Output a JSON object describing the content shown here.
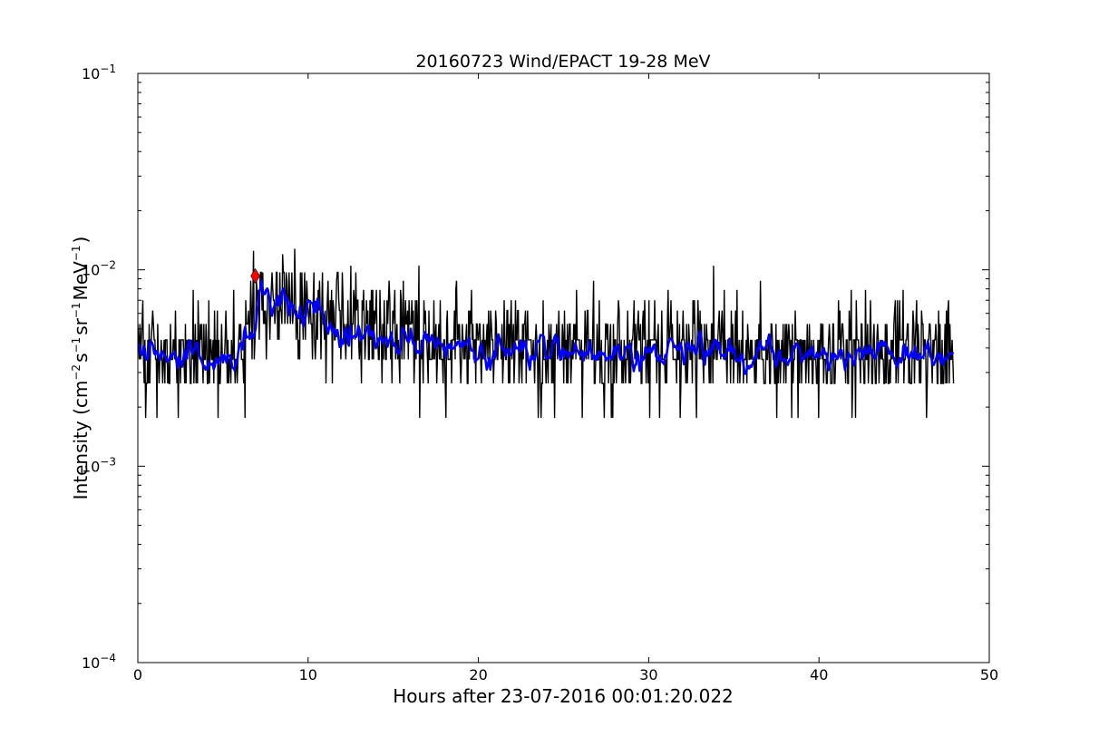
{
  "chart_data": {
    "type": "line",
    "title": "20160723 Wind/EPACT 19-28 MeV",
    "xlabel": "Hours after 23-07-2016 00:01:20.022",
    "ylabel": {
      "base": "Intensity (cm",
      "e1": "−2",
      "u1": "s",
      "e2": "−1",
      "u2": "sr",
      "e3": "−1",
      "u3": "MeV",
      "e4": "−1",
      "close": ")"
    },
    "xlim": [
      0,
      50
    ],
    "ylim": [
      0.0001,
      0.1
    ],
    "yscale": "log",
    "grid": false,
    "xticks": [
      "0",
      "10",
      "20",
      "30",
      "40",
      "50"
    ],
    "yticks": [
      {
        "base": "10",
        "exp": "−4",
        "value": 0.0001
      },
      {
        "base": "10",
        "exp": "−3",
        "value": 0.001
      },
      {
        "base": "10",
        "exp": "−2",
        "value": 0.01
      },
      {
        "base": "10",
        "exp": "−1",
        "value": 0.1
      }
    ],
    "series": [
      {
        "color": "#000000",
        "x_start": 0.0,
        "x_end": 47.9,
        "quantized_levels": [
          0.00088,
          0.00176,
          0.00264,
          0.0035,
          0.0044,
          0.0053,
          0.0062,
          0.007,
          0.0079,
          0.0088,
          0.0097
        ],
        "baseline": 0.0038,
        "onset_hour": 6.2,
        "peak_hour": 8.2,
        "peak_value": 0.0075,
        "max_spikes": [
          [
            6.8,
            0.0125
          ],
          [
            9.2,
            0.0128
          ],
          [
            8.5,
            0.012
          ],
          [
            12.5,
            0.0105
          ],
          [
            16.5,
            0.0105
          ],
          [
            33.8,
            0.0105
          ]
        ]
      },
      {
        "color": "#0000ff",
        "profile": [
          [
            0.0,
            0.0039
          ],
          [
            1,
            0.0038
          ],
          [
            2,
            0.0036
          ],
          [
            3,
            0.0034
          ],
          [
            4,
            0.0037
          ],
          [
            5,
            0.0034
          ],
          [
            6,
            0.0037
          ],
          [
            6.8,
            0.0052
          ],
          [
            7.2,
            0.0078
          ],
          [
            8,
            0.0074
          ],
          [
            9,
            0.0068
          ],
          [
            10,
            0.0063
          ],
          [
            11,
            0.0055
          ],
          [
            12,
            0.0049
          ],
          [
            13,
            0.0047
          ],
          [
            14,
            0.0046
          ],
          [
            15,
            0.0045
          ],
          [
            16,
            0.0044
          ],
          [
            18,
            0.0041
          ],
          [
            20,
            0.0039
          ],
          [
            25,
            0.0038
          ],
          [
            30,
            0.0037
          ],
          [
            35,
            0.0037
          ],
          [
            40,
            0.0036
          ],
          [
            45,
            0.0038
          ],
          [
            47.9,
            0.0037
          ]
        ]
      }
    ],
    "marker": {
      "x": 6.9,
      "y": 0.0093,
      "color": "#ff0000",
      "shape": "diamond"
    }
  }
}
